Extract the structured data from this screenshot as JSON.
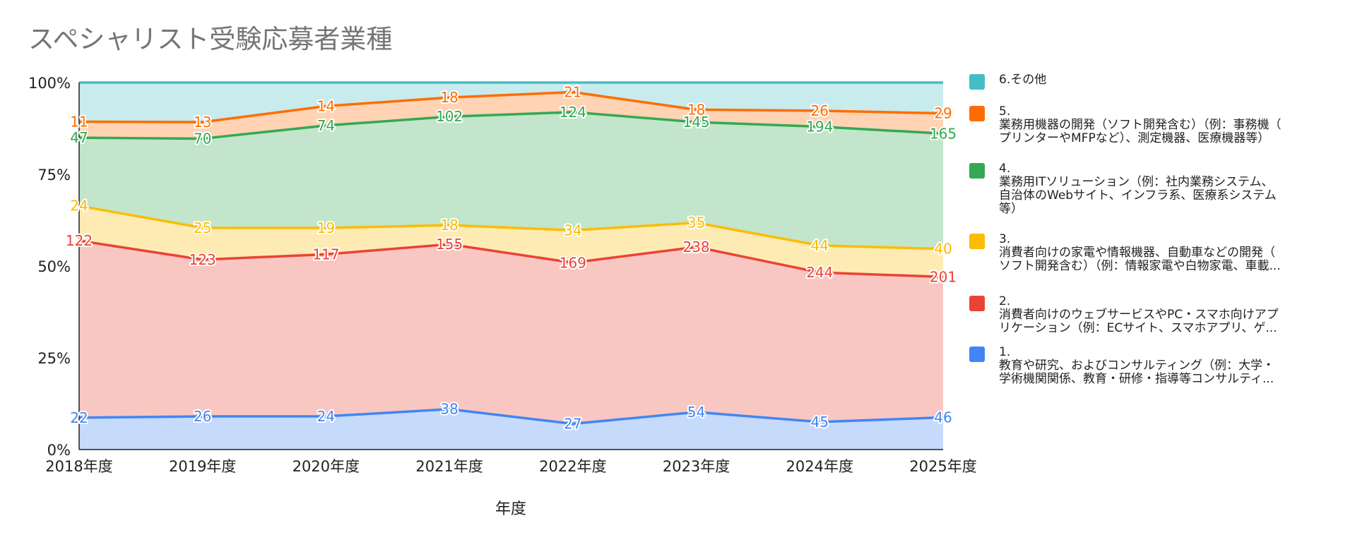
{
  "chart_data": {
    "type": "area",
    "stacked": "percent",
    "title": "スペシャリスト受験応募者業種",
    "xlabel": "年度",
    "ylabel": "",
    "categories": [
      "2018年度",
      "2019年度",
      "2020年度",
      "2021年度",
      "2022年度",
      "2023年度",
      "2024年度",
      "2025年度"
    ],
    "y_ticks": [
      "0%",
      "25%",
      "50%",
      "75%",
      "100%"
    ],
    "ylim": [
      0,
      100
    ],
    "grid": true,
    "legend_position": "right",
    "series": [
      {
        "key": "s1",
        "legend": "1.\n教育や研究、およびコンサルティング（例：大学・\n学術機関関係、教育・研修・指導等コンサルティ...",
        "color": "#4285f4",
        "values": [
          22,
          26,
          24,
          38,
          27,
          54,
          45,
          46
        ],
        "labels": [
          "22",
          "26",
          "24",
          "38",
          "27",
          "54",
          "45",
          "46"
        ]
      },
      {
        "key": "s2",
        "legend": "2.\n消費者向けのウェブサービスやPC・スマホ向けアプ\nリケーション（例：ECサイト、スマホアプリ、ゲ...",
        "color": "#ea4335",
        "values": [
          122,
          123,
          117,
          155,
          169,
          238,
          244,
          201
        ],
        "labels": [
          "122",
          "123",
          "117",
          "155",
          "169",
          "238",
          "244",
          "201"
        ]
      },
      {
        "key": "s3",
        "legend": "3.\n消費者向けの家電や情報機器、自動車などの開発（\nソフト開発含む）（例：情報家電や白物家電、車載...",
        "color": "#fbbc04",
        "values": [
          24,
          25,
          19,
          18,
          34,
          35,
          44,
          40
        ],
        "labels": [
          "24",
          "25",
          "19",
          "18",
          "34",
          "35",
          "44",
          "40"
        ]
      },
      {
        "key": "s4",
        "legend": "4.\n業務用ITソリューション（例：社内業務システム、\n自治体のWebサイト、インフラ系、医療系システム\n等）",
        "color": "#34a853",
        "values": [
          47,
          70,
          74,
          102,
          124,
          145,
          194,
          165
        ],
        "labels": [
          "47",
          "70",
          "74",
          "102",
          "124",
          "145",
          "194",
          "165"
        ]
      },
      {
        "key": "s5",
        "legend": "5.\n業務用機器の開発（ソフト開発含む）（例：事務機（\nプリンターやMFPなど）、測定機器、医療機器等）",
        "color": "#ff6d01",
        "values": [
          11,
          13,
          14,
          18,
          21,
          18,
          26,
          29
        ],
        "labels": [
          "11",
          "13",
          "14",
          "18",
          "21",
          "18",
          "26",
          "29"
        ]
      },
      {
        "key": "s6",
        "legend": "6.その他",
        "color": "#46bdc6",
        "values": [
          27,
          31,
          17,
          14,
          10,
          39,
          46,
          44
        ],
        "labels": []
      }
    ]
  }
}
